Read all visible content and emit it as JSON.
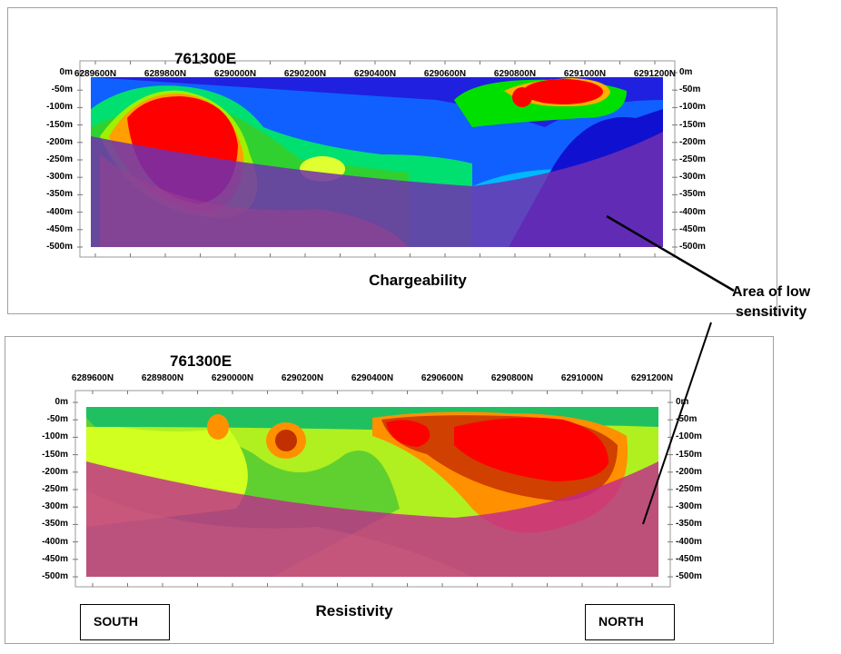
{
  "chart_data": [
    {
      "type": "heatmap",
      "title": "761300E",
      "caption": "Chargeability",
      "x_tick_labels": [
        "6289600N",
        "6289800N",
        "6290000N",
        "6290200N",
        "6290400N",
        "6290600N",
        "6290800N",
        "6291000N",
        "6291200N"
      ],
      "y_tick_labels": [
        "0m",
        "-50m",
        "-100m",
        "-150m",
        "-200m",
        "-250m",
        "-300m",
        "-350m",
        "-400m",
        "-450m",
        "-500m"
      ],
      "ylim": [
        -500,
        0
      ],
      "colors": {
        "high": "#ff0000",
        "mid": "#00e000",
        "low": "#2000d0",
        "mask": "#8030a0"
      }
    },
    {
      "type": "heatmap",
      "title": "761300E",
      "caption": "Resistivity",
      "x_tick_labels": [
        "6289600N",
        "6289800N",
        "6290000N",
        "6290200N",
        "6290400N",
        "6290600N",
        "6290800N",
        "6291000N",
        "6291200N"
      ],
      "y_tick_labels": [
        "0m",
        "-50m",
        "-100m",
        "-150m",
        "-200m",
        "-250m",
        "-300m",
        "-350m",
        "-400m",
        "-450m",
        "-500m"
      ],
      "ylim": [
        -500,
        0
      ],
      "colors": {
        "high": "#ff0000",
        "mid": "#e0ff20",
        "low": "#10b040",
        "mask": "#c02890"
      }
    }
  ],
  "annotation": {
    "line1": "Area of low",
    "line2": "sensitivity"
  },
  "labels": {
    "south": "SOUTH",
    "north": "NORTH"
  }
}
